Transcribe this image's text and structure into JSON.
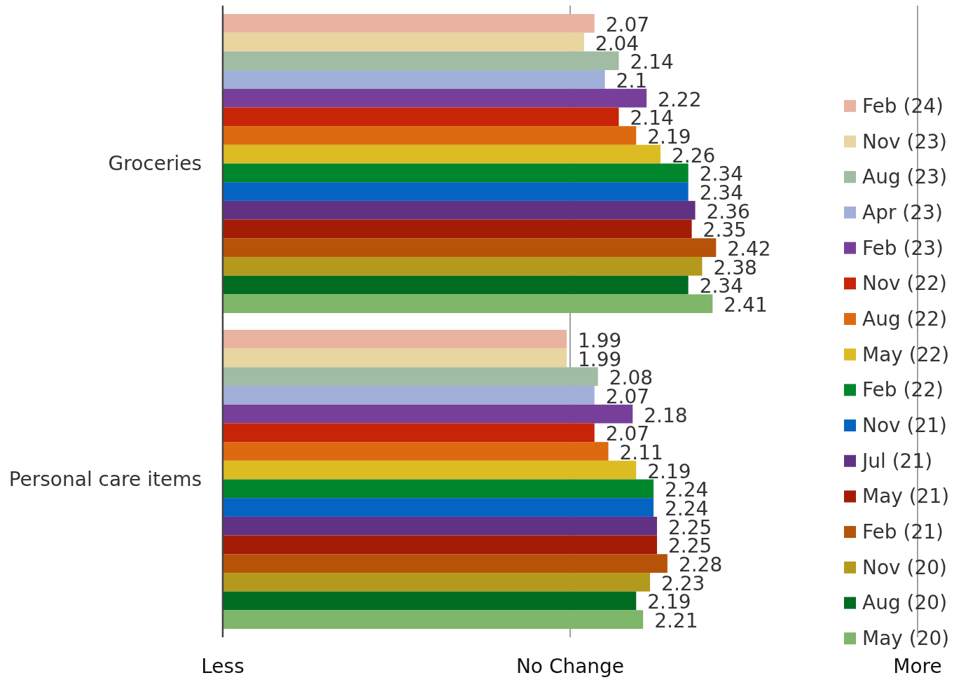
{
  "chart_data": {
    "type": "bar",
    "orientation": "horizontal",
    "categories": [
      "Groceries",
      "Personal care items"
    ],
    "series": [
      {
        "name": "Feb (24)",
        "color": "#e9b2a1",
        "values": [
          2.07,
          1.99
        ]
      },
      {
        "name": "Nov (23)",
        "color": "#e8d5a0",
        "values": [
          2.04,
          1.99
        ]
      },
      {
        "name": "Aug (23)",
        "color": "#a0bca2",
        "values": [
          2.14,
          2.08
        ]
      },
      {
        "name": "Apr (23)",
        "color": "#a0b0d8",
        "values": [
          2.1,
          2.07
        ]
      },
      {
        "name": "Feb (23)",
        "color": "#783f9a",
        "values": [
          2.22,
          2.18
        ]
      },
      {
        "name": "Nov (22)",
        "color": "#c72408",
        "values": [
          2.14,
          2.07
        ]
      },
      {
        "name": "Aug (22)",
        "color": "#dd6a10",
        "values": [
          2.19,
          2.11
        ]
      },
      {
        "name": "May (22)",
        "color": "#dcbc22",
        "values": [
          2.26,
          2.19
        ]
      },
      {
        "name": "Feb (22)",
        "color": "#00862c",
        "values": [
          2.34,
          2.24
        ]
      },
      {
        "name": "Nov (21)",
        "color": "#0564c1",
        "values": [
          2.34,
          2.24
        ]
      },
      {
        "name": "Jul (21)",
        "color": "#613283",
        "values": [
          2.36,
          2.25
        ]
      },
      {
        "name": "May (21)",
        "color": "#a41c06",
        "values": [
          2.35,
          2.25
        ]
      },
      {
        "name": "Feb (21)",
        "color": "#b65309",
        "values": [
          2.42,
          2.28
        ]
      },
      {
        "name": "Nov (20)",
        "color": "#b49a1c",
        "values": [
          2.38,
          2.23
        ]
      },
      {
        "name": "Aug (20)",
        "color": "#006c22",
        "values": [
          2.34,
          2.19
        ]
      },
      {
        "name": "May (20)",
        "color": "#7eb66a",
        "values": [
          2.41,
          2.21
        ]
      }
    ],
    "xlim": [
      1,
      3
    ],
    "ref_lines": [
      {
        "axis": "x",
        "value": 2,
        "label": "No Change",
        "color": "#a0a0a0"
      },
      {
        "axis": "x",
        "value": 3,
        "label": "More",
        "color": "#a0a0a0"
      }
    ],
    "annotations": [
      "Less"
    ],
    "legend": "right",
    "data_labels": true
  }
}
